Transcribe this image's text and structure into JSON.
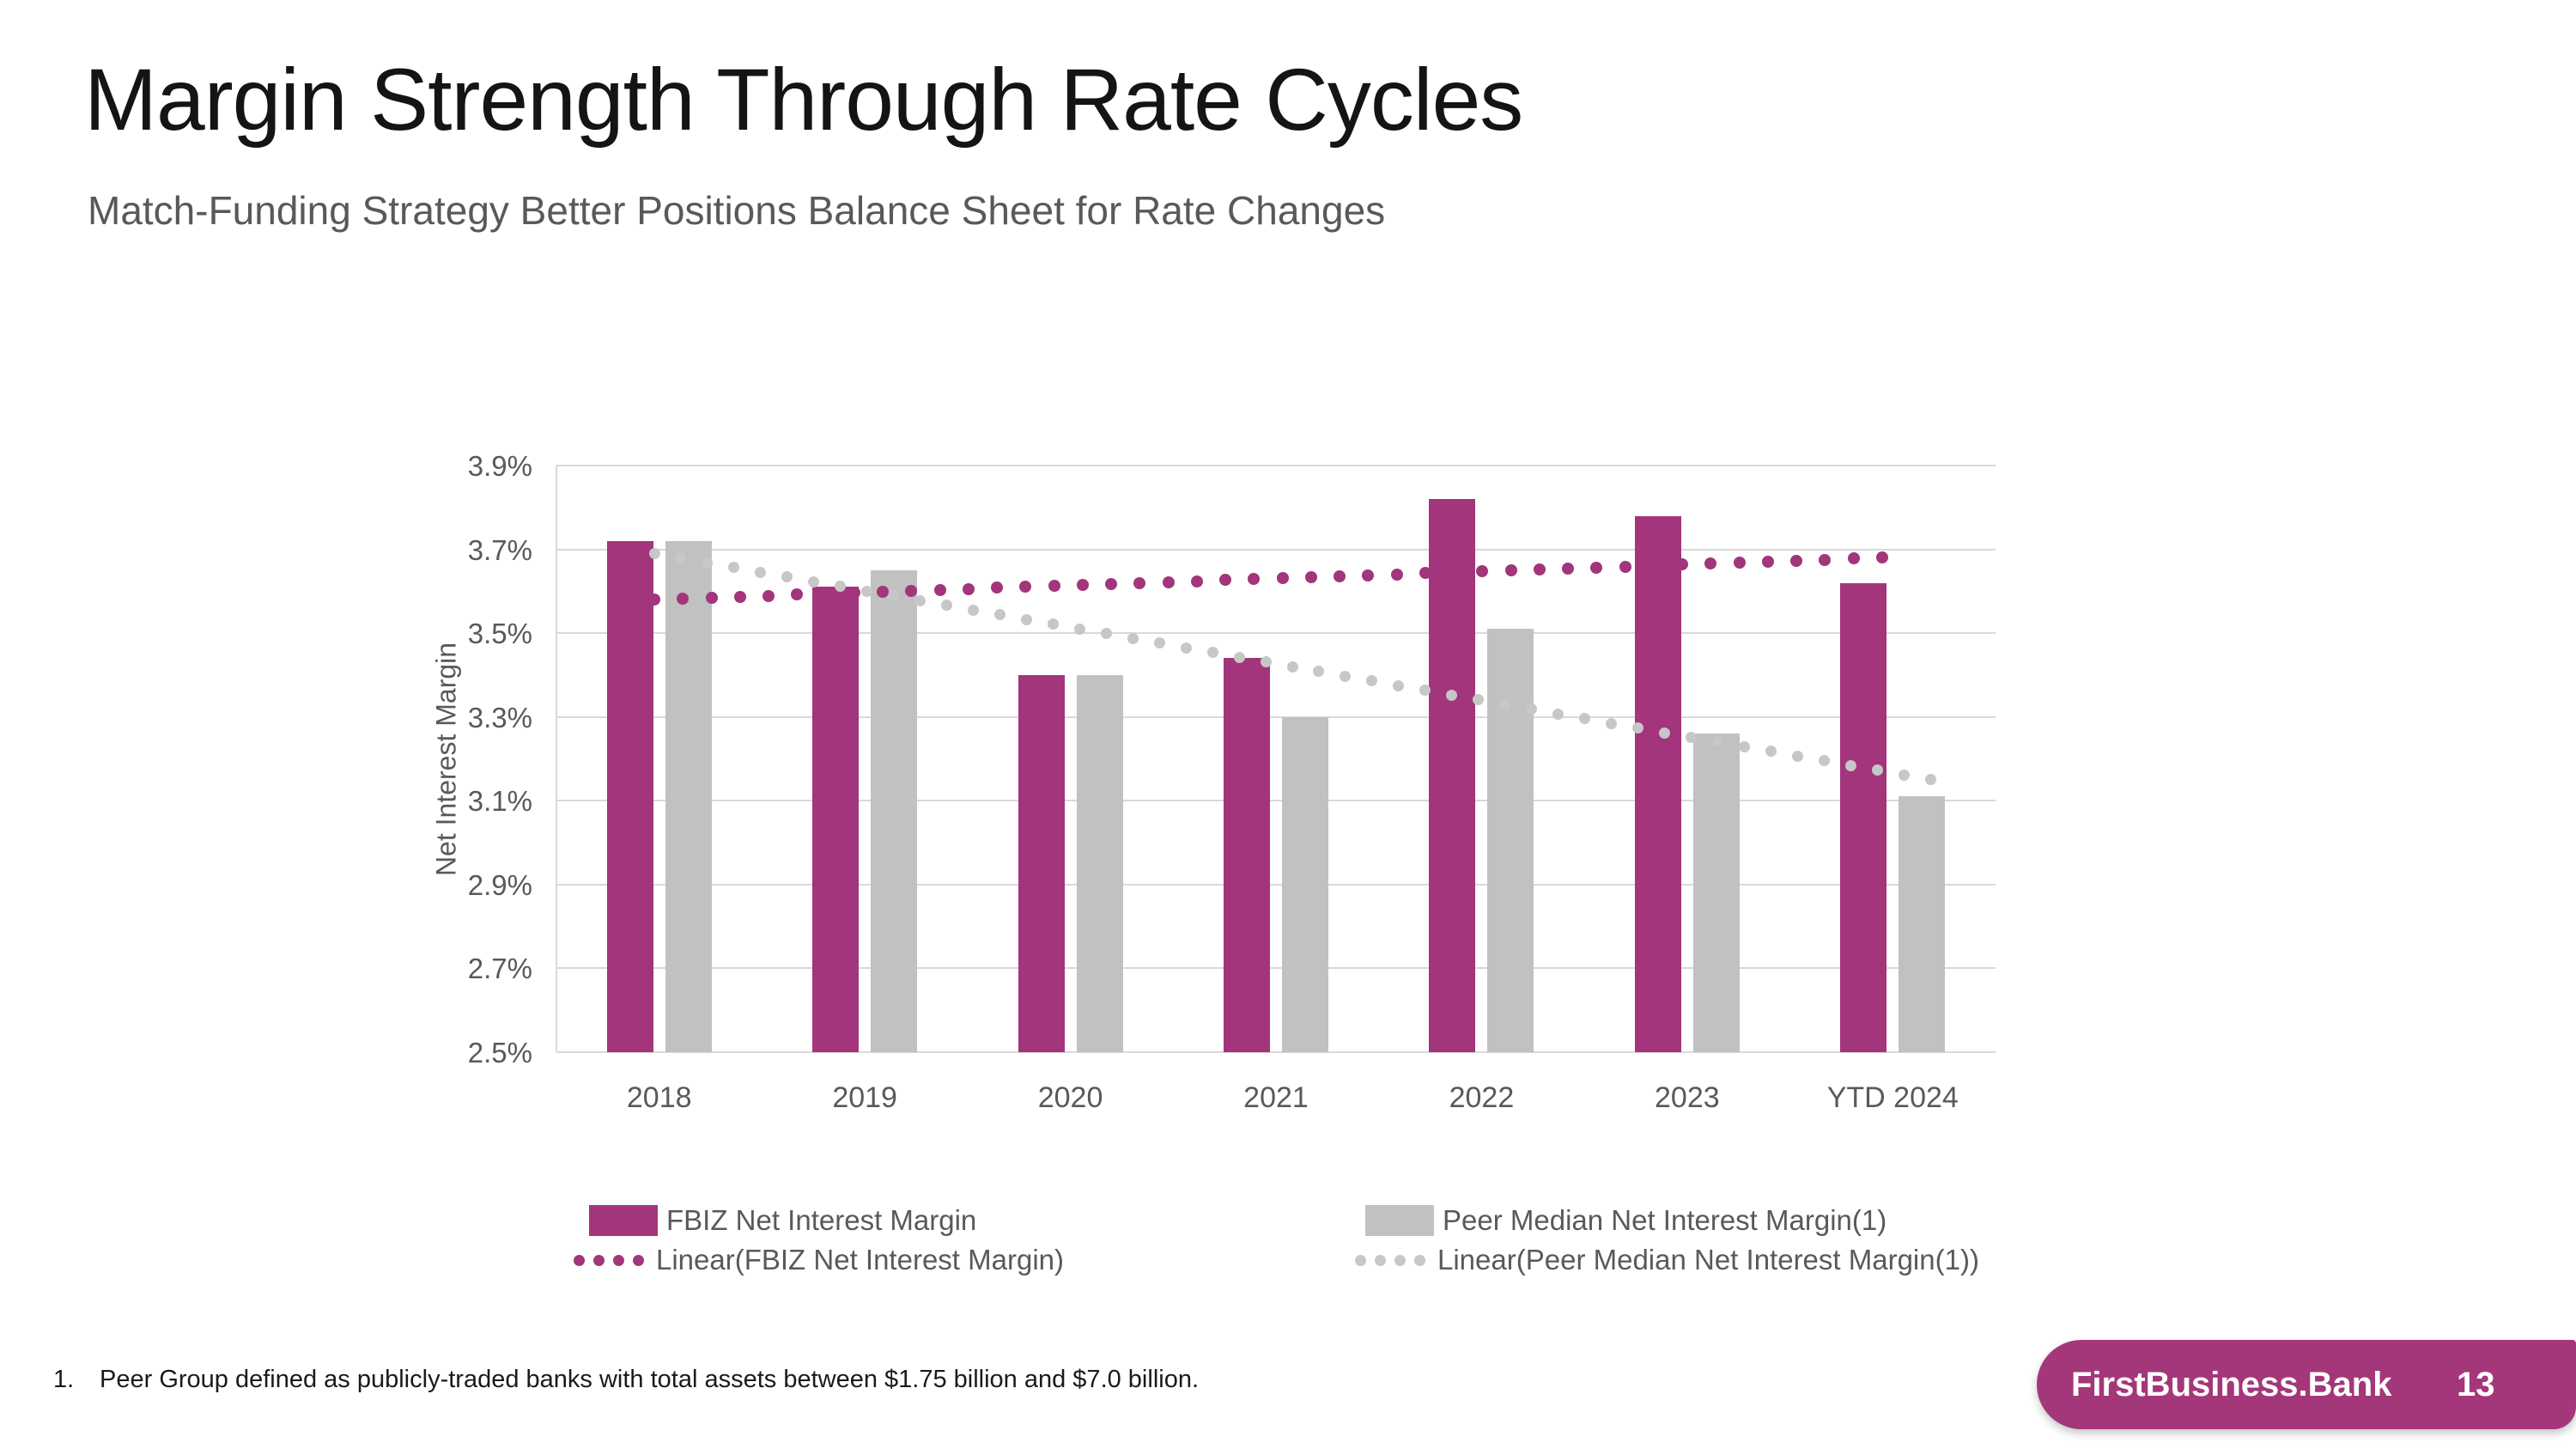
{
  "slide": {
    "title": "Margin Strength Through Rate Cycles",
    "subtitle": "Match-Funding Strategy Better Positions Balance Sheet for Rate Changes",
    "footnote_number": "1.",
    "footnote_text": "Peer Group defined as publicly-traded banks with total assets between $1.75 billion and $7.0 billion.",
    "footer": {
      "brand": "FirstBusiness.Bank",
      "page_number": "13"
    }
  },
  "colors": {
    "fbiz": "#A2357B",
    "peer": "#C1C1C1",
    "fbiz_trend": "#A2357B",
    "peer_trend": "#C7C7C7",
    "gridline": "#D9D9D9",
    "axis_text": "#595959",
    "badge": "#A43779"
  },
  "chart_data": {
    "type": "bar",
    "title": "",
    "categories": [
      "2018",
      "2019",
      "2020",
      "2021",
      "2022",
      "2023",
      "YTD 2024"
    ],
    "series": [
      {
        "name": "FBIZ Net Interest Margin",
        "values": [
          3.72,
          3.61,
          3.4,
          3.44,
          3.82,
          3.78,
          3.62
        ]
      },
      {
        "name": "Peer Median Net Interest Margin(1)",
        "values": [
          3.72,
          3.65,
          3.4,
          3.3,
          3.51,
          3.26,
          3.11
        ]
      }
    ],
    "trendlines": [
      {
        "name": "Linear(FBIZ Net Interest Margin)",
        "start": 3.58,
        "end": 3.68
      },
      {
        "name": "Linear(Peer Median Net Interest Margin(1))",
        "start": 3.69,
        "end": 3.15
      }
    ],
    "xlabel": "",
    "ylabel": "Net Interest Margin",
    "ylim": [
      2.5,
      3.9
    ],
    "ytick_values": [
      3.9,
      3.7,
      3.5,
      3.3,
      3.1,
      2.9,
      2.7,
      2.5
    ],
    "yticks": [
      "3.9%",
      "3.7%",
      "3.5%",
      "3.3%",
      "3.1%",
      "2.9%",
      "2.7%",
      "2.5%"
    ],
    "grid": true,
    "legend_position": "bottom"
  }
}
